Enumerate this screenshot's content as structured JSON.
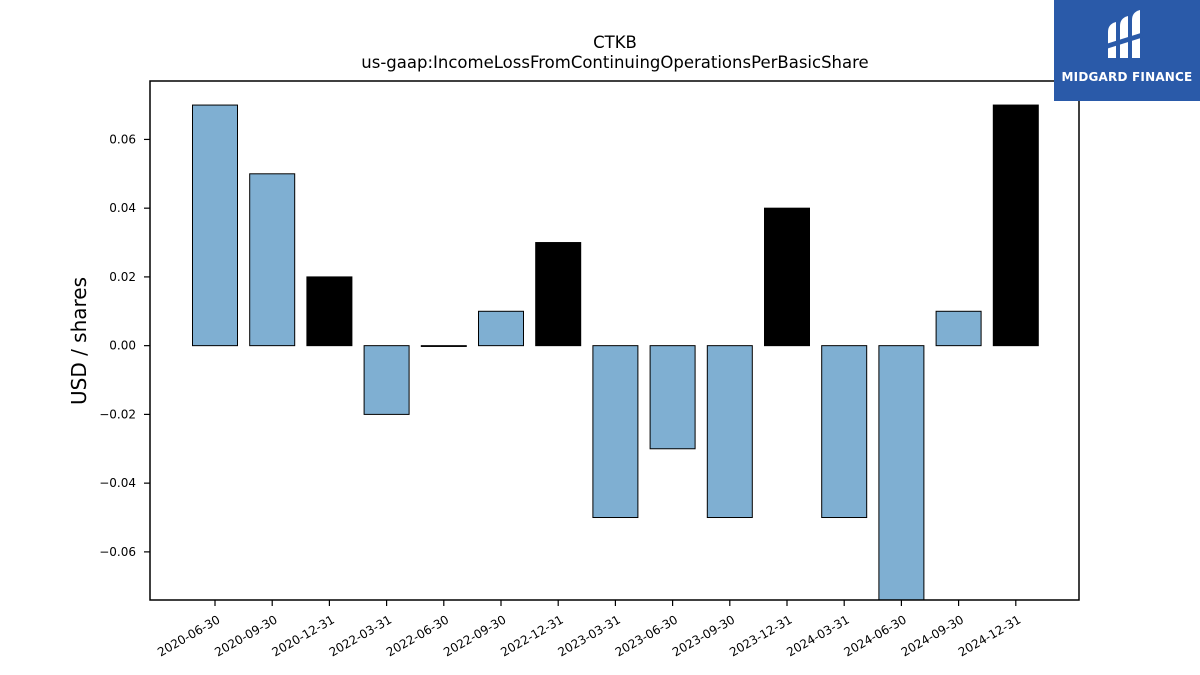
{
  "chart_data": {
    "type": "bar",
    "title": "CTKB",
    "subtitle": "us-gaap:IncomeLossFromContinuingOperationsPerBasicShare",
    "ylabel": "USD / shares",
    "xlabel": "",
    "ylim": [
      -0.074,
      0.077
    ],
    "yticks": [
      -0.06,
      -0.04,
      -0.02,
      0.0,
      0.02,
      0.04,
      0.06
    ],
    "ytick_labels": [
      "−0.06",
      "−0.04",
      "−0.02",
      "0.00",
      "0.02",
      "0.04",
      "0.06"
    ],
    "categories": [
      "2020-06-30",
      "2020-09-30",
      "2020-12-31",
      "2022-03-31",
      "2022-06-30",
      "2022-09-30",
      "2022-12-31",
      "2023-03-31",
      "2023-06-30",
      "2023-09-30",
      "2023-12-31",
      "2024-03-31",
      "2024-06-30",
      "2024-09-30",
      "2024-12-31"
    ],
    "values": [
      0.07,
      0.05,
      0.02,
      -0.02,
      0.0,
      0.01,
      0.03,
      -0.05,
      -0.03,
      -0.05,
      0.04,
      -0.05,
      -0.08,
      0.01,
      0.07
    ],
    "bar_kind": [
      "quarter",
      "quarter",
      "annual",
      "quarter",
      "quarter",
      "quarter",
      "annual",
      "quarter",
      "quarter",
      "quarter",
      "annual",
      "quarter",
      "quarter",
      "quarter",
      "annual"
    ],
    "colors": {
      "quarter": "#7fafd2",
      "annual": "#000000",
      "edge": "#000000"
    },
    "grid": false,
    "legend": "none"
  },
  "logo": {
    "text": "MIDGARD FINANCE",
    "color": "#2a5aa9"
  }
}
